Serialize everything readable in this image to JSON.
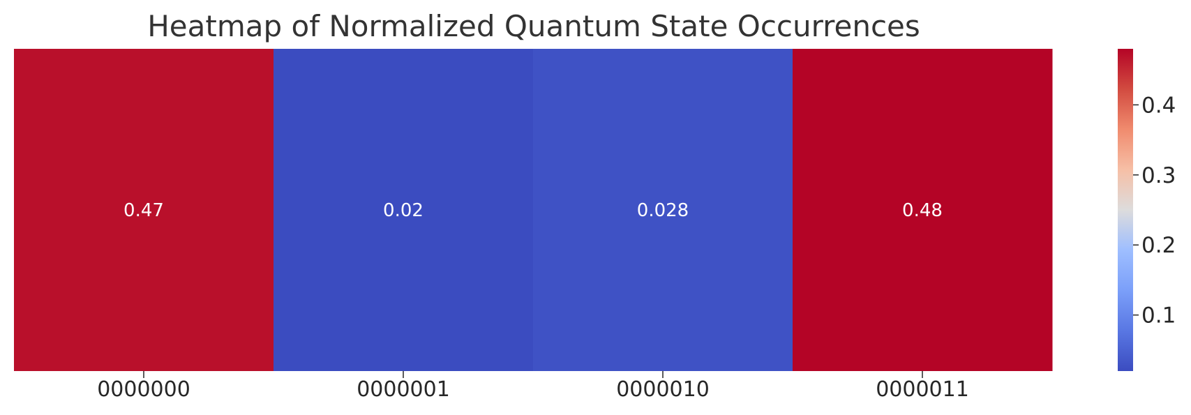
{
  "chart_data": {
    "type": "heatmap",
    "title": "Heatmap of Normalized Quantum State Occurrences",
    "xlabel": "",
    "ylabel": "",
    "categories": [
      "0000000",
      "0000001",
      "0000010",
      "0000011"
    ],
    "values": [
      0.47,
      0.02,
      0.028,
      0.48
    ],
    "cell_labels": [
      "0.47",
      "0.02",
      "0.028",
      "0.48"
    ],
    "colormap": "coolwarm",
    "colorbar": {
      "range": [
        0.02,
        0.48
      ],
      "ticks": [
        0.1,
        0.2,
        0.3,
        0.4
      ],
      "tick_labels": [
        "0.1",
        "0.2",
        "0.3",
        "0.4"
      ]
    },
    "grid": false
  }
}
